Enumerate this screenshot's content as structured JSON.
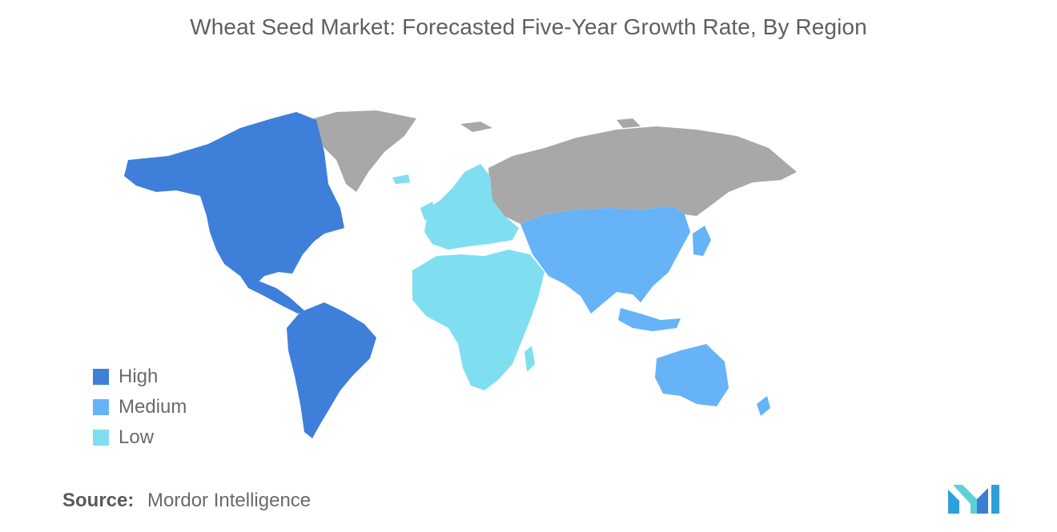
{
  "title": "Wheat Seed Market: Forecasted Five-Year Growth Rate, By Region",
  "legend": [
    {
      "label": "High",
      "color": "#3e7fd9"
    },
    {
      "label": "Medium",
      "color": "#66b3f7"
    },
    {
      "label": "Low",
      "color": "#7fdff0"
    }
  ],
  "no_data_color": "#a8a8a8",
  "regions": [
    {
      "name": "North America",
      "level": "High"
    },
    {
      "name": "South America",
      "level": "High"
    },
    {
      "name": "Asia-Pacific",
      "level": "Medium"
    },
    {
      "name": "Europe",
      "level": "Low"
    },
    {
      "name": "Middle East and Africa",
      "level": "Low"
    }
  ],
  "source": {
    "label": "Source:",
    "value": "Mordor Intelligence"
  }
}
